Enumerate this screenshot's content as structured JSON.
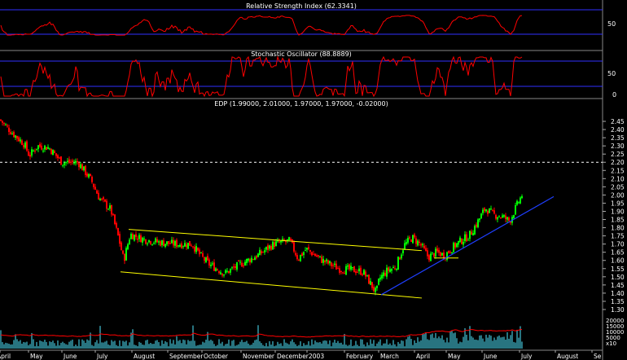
{
  "chart_data": {
    "type": "candlestick",
    "symbol_label": "EDP (1.99000, 2.01000, 1.97000, 1.97000, -0.02000)",
    "x_tick_labels": [
      "April",
      "May",
      "June",
      "July",
      "August",
      "September",
      "October",
      "November",
      "December",
      "2003",
      "February",
      "March",
      "April",
      "May",
      "June",
      "July",
      "August",
      "Se"
    ],
    "price_axis": {
      "ylim": [
        1.27,
        2.52
      ],
      "ticks": [
        "2.45",
        "2.40",
        "2.35",
        "2.30",
        "2.25",
        "2.20",
        "2.15",
        "2.10",
        "2.05",
        "2.00",
        "1.95",
        "1.90",
        "1.85",
        "1.80",
        "1.75",
        "1.70",
        "1.65",
        "1.60",
        "1.55",
        "1.50",
        "1.45",
        "1.40",
        "1.35",
        "1.30"
      ],
      "reference_line": 2.2
    },
    "price_anchors": {
      "x": [
        0,
        15,
        30,
        36,
        46,
        60,
        76,
        96,
        112,
        122,
        136,
        146,
        152,
        156,
        160,
        176,
        196,
        216,
        236,
        246,
        256,
        276,
        296,
        316,
        336,
        356,
        366,
        376,
        396,
        416,
        436,
        446,
        456,
        462,
        466,
        476,
        486,
        496,
        506,
        516,
        526,
        536,
        546,
        556,
        566,
        576,
        586,
        596,
        606,
        616,
        626,
        636,
        641
      ],
      "close": [
        2.46,
        2.38,
        2.31,
        2.24,
        2.3,
        2.29,
        2.2,
        2.2,
        2.09,
        1.98,
        1.91,
        1.73,
        1.6,
        1.68,
        1.76,
        1.73,
        1.71,
        1.7,
        1.7,
        1.63,
        1.58,
        1.52,
        1.58,
        1.63,
        1.7,
        1.72,
        1.61,
        1.67,
        1.6,
        1.55,
        1.54,
        1.53,
        1.45,
        1.4,
        1.49,
        1.54,
        1.56,
        1.69,
        1.74,
        1.7,
        1.62,
        1.65,
        1.63,
        1.68,
        1.72,
        1.75,
        1.83,
        1.92,
        1.88,
        1.87,
        1.84,
        1.95,
        2.0
      ]
    },
    "channel_lines": [
      {
        "x": [
          158,
          518
        ],
        "y": [
          1.79,
          1.66
        ],
        "color": "#ffff00"
      },
      {
        "x": [
          148,
          518
        ],
        "y": [
          1.53,
          1.37
        ],
        "color": "#ffff00"
      },
      {
        "x": [
          533,
          563
        ],
        "y": [
          1.615,
          1.615
        ],
        "color": "#ffff00"
      }
    ],
    "trend_line": {
      "x": [
        468,
        680
      ],
      "y": [
        1.39,
        1.99
      ],
      "color": "#1f3fff"
    },
    "volume_panel": {
      "ticks": [
        "20000",
        "15000",
        "10000",
        "5000",
        "x10"
      ],
      "scale": [
        0,
        24000
      ]
    },
    "rsi_panel": {
      "title": "Relative Strength Index (62.3341)",
      "ticks": [
        "50"
      ],
      "levels": [
        70,
        30
      ],
      "ylim": [
        0,
        100
      ]
    },
    "stoch_panel": {
      "title": "Stochastic Oscillator (88.8889)",
      "ticks": [
        "50",
        "0"
      ],
      "levels": [
        80,
        20
      ],
      "ylim": [
        0,
        100
      ]
    },
    "colors": {
      "up": "#00ff00",
      "down": "#ff0000",
      "indicator": "#ff0000",
      "level": "#3030ff",
      "volume": "#50e8ff",
      "volume_avg": "#ff0000",
      "text": "#ffffff",
      "grid_dots": "#ffffff"
    }
  }
}
